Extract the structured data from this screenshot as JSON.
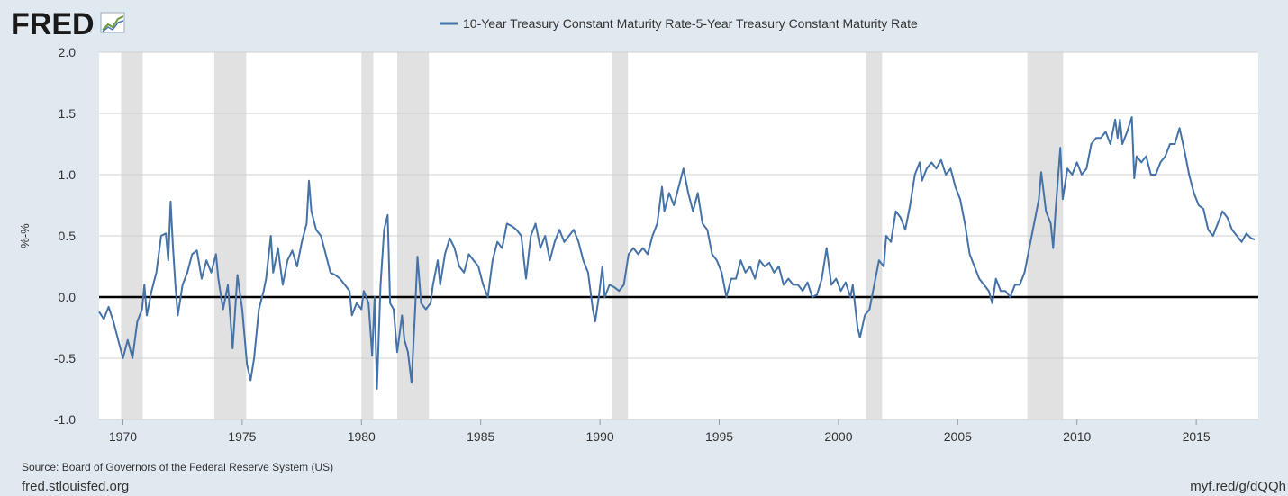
{
  "logo": "FRED",
  "source": "Source: Board of Governors of the Federal Reserve System (US)",
  "site": "fred.stlouisfed.org",
  "short_link": "myf.red/g/dQQh",
  "chart_data": {
    "type": "line",
    "y_label": "%-%",
    "xlim": [
      1969.0,
      2017.6
    ],
    "xticks": [
      1970,
      1975,
      1980,
      1985,
      1990,
      1995,
      2000,
      2005,
      2010,
      2015
    ],
    "ylim": [
      -1.0,
      2.0
    ],
    "yticks": [
      {
        "value": -1.0,
        "label": "-1.0"
      },
      -0.5,
      {
        "value": 0.0,
        "label": "0.0"
      },
      0.5,
      {
        "value": 1.0,
        "label": "1.0"
      },
      1.5,
      {
        "value": 2.0,
        "label": "2.0"
      }
    ],
    "grid": true,
    "baseline": 0,
    "recessions": [
      [
        1969.92,
        1970.83
      ],
      [
        1973.83,
        1975.17
      ],
      [
        1980.0,
        1980.5
      ],
      [
        1981.5,
        1982.83
      ],
      [
        1990.5,
        1991.17
      ],
      [
        2001.17,
        2001.83
      ],
      [
        2007.92,
        2009.42
      ]
    ],
    "series": [
      {
        "name": "10-Year Treasury Constant Maturity Rate-5-Year Treasury Constant Maturity Rate",
        "color": "#4572a7",
        "x": [
          1969.0,
          1969.2,
          1969.4,
          1969.6,
          1969.8,
          1970.0,
          1970.2,
          1970.4,
          1970.6,
          1970.8,
          1970.9,
          1971.0,
          1971.2,
          1971.4,
          1971.6,
          1971.8,
          1971.9,
          1972.0,
          1972.1,
          1972.2,
          1972.3,
          1972.5,
          1972.7,
          1972.9,
          1973.1,
          1973.3,
          1973.5,
          1973.7,
          1973.9,
          1974.0,
          1974.2,
          1974.4,
          1974.6,
          1974.8,
          1975.0,
          1975.2,
          1975.35,
          1975.5,
          1975.7,
          1975.9,
          1976.0,
          1976.2,
          1976.3,
          1976.5,
          1976.7,
          1976.9,
          1977.1,
          1977.3,
          1977.5,
          1977.7,
          1977.8,
          1977.9,
          1978.1,
          1978.3,
          1978.5,
          1978.7,
          1978.9,
          1979.1,
          1979.3,
          1979.5,
          1979.6,
          1979.8,
          1980.0,
          1980.1,
          1980.3,
          1980.45,
          1980.55,
          1980.65,
          1980.8,
          1980.95,
          1981.1,
          1981.2,
          1981.35,
          1981.5,
          1981.7,
          1981.8,
          1981.95,
          1982.1,
          1982.25,
          1982.35,
          1982.5,
          1982.7,
          1982.9,
          1983.0,
          1983.2,
          1983.3,
          1983.5,
          1983.7,
          1983.9,
          1984.1,
          1984.3,
          1984.5,
          1984.7,
          1984.9,
          1985.1,
          1985.3,
          1985.5,
          1985.7,
          1985.9,
          1986.1,
          1986.3,
          1986.5,
          1986.7,
          1986.9,
          1987.1,
          1987.3,
          1987.5,
          1987.7,
          1987.9,
          1988.1,
          1988.3,
          1988.5,
          1988.7,
          1988.9,
          1989.1,
          1989.3,
          1989.5,
          1989.7,
          1989.8,
          1989.95,
          1990.1,
          1990.2,
          1990.4,
          1990.6,
          1990.8,
          1991.0,
          1991.2,
          1991.4,
          1991.6,
          1991.8,
          1992.0,
          1992.2,
          1992.4,
          1992.6,
          1992.7,
          1992.9,
          1993.1,
          1993.3,
          1993.5,
          1993.7,
          1993.9,
          1994.1,
          1994.3,
          1994.5,
          1994.7,
          1994.9,
          1995.1,
          1995.3,
          1995.5,
          1995.7,
          1995.9,
          1996.1,
          1996.3,
          1996.5,
          1996.7,
          1996.9,
          1997.1,
          1997.3,
          1997.5,
          1997.7,
          1997.9,
          1998.1,
          1998.3,
          1998.5,
          1998.7,
          1998.9,
          1999.1,
          1999.3,
          1999.5,
          1999.7,
          1999.9,
          2000.1,
          2000.3,
          2000.5,
          2000.6,
          2000.8,
          2000.9,
          2001.1,
          2001.3,
          2001.5,
          2001.7,
          2001.9,
          2002.0,
          2002.2,
          2002.4,
          2002.6,
          2002.8,
          2003.0,
          2003.2,
          2003.4,
          2003.5,
          2003.7,
          2003.9,
          2004.1,
          2004.3,
          2004.5,
          2004.7,
          2004.9,
          2005.1,
          2005.3,
          2005.5,
          2005.7,
          2005.9,
          2006.1,
          2006.3,
          2006.45,
          2006.6,
          2006.8,
          2007.0,
          2007.2,
          2007.4,
          2007.6,
          2007.8,
          2008.0,
          2008.2,
          2008.4,
          2008.5,
          2008.7,
          2008.9,
          2009.0,
          2009.1,
          2009.3,
          2009.4,
          2009.6,
          2009.8,
          2010.0,
          2010.2,
          2010.4,
          2010.6,
          2010.8,
          2011.0,
          2011.2,
          2011.4,
          2011.6,
          2011.7,
          2011.8,
          2011.9,
          2012.1,
          2012.3,
          2012.4,
          2012.5,
          2012.7,
          2012.9,
          2013.1,
          2013.3,
          2013.5,
          2013.7,
          2013.9,
          2014.1,
          2014.3,
          2014.5,
          2014.7,
          2014.9,
          2015.1,
          2015.3,
          2015.5,
          2015.7,
          2015.9,
          2016.1,
          2016.3,
          2016.5,
          2016.7,
          2016.9,
          2017.1,
          2017.3,
          2017.45
        ],
        "values": [
          -0.12,
          -0.18,
          -0.08,
          -0.2,
          -0.35,
          -0.5,
          -0.35,
          -0.5,
          -0.2,
          -0.1,
          0.1,
          -0.15,
          0.05,
          0.2,
          0.5,
          0.52,
          0.3,
          0.78,
          0.4,
          0.1,
          -0.15,
          0.1,
          0.2,
          0.35,
          0.38,
          0.15,
          0.3,
          0.2,
          0.35,
          0.15,
          -0.1,
          0.1,
          -0.42,
          0.18,
          -0.1,
          -0.55,
          -0.68,
          -0.5,
          -0.1,
          0.05,
          0.15,
          0.5,
          0.2,
          0.4,
          0.1,
          0.3,
          0.38,
          0.25,
          0.45,
          0.6,
          0.95,
          0.7,
          0.55,
          0.5,
          0.35,
          0.2,
          0.18,
          0.15,
          0.1,
          0.05,
          -0.15,
          -0.05,
          -0.1,
          0.05,
          -0.05,
          -0.48,
          0.0,
          -0.75,
          0.1,
          0.55,
          0.67,
          -0.05,
          -0.1,
          -0.45,
          -0.15,
          -0.35,
          -0.45,
          -0.7,
          -0.1,
          0.33,
          -0.05,
          -0.1,
          -0.05,
          0.1,
          0.3,
          0.1,
          0.35,
          0.48,
          0.4,
          0.25,
          0.2,
          0.35,
          0.3,
          0.25,
          0.1,
          0.0,
          0.3,
          0.45,
          0.4,
          0.6,
          0.58,
          0.55,
          0.5,
          0.15,
          0.5,
          0.6,
          0.4,
          0.5,
          0.3,
          0.45,
          0.55,
          0.45,
          0.5,
          0.55,
          0.45,
          0.3,
          0.2,
          -0.1,
          -0.2,
          0.0,
          0.25,
          0.0,
          0.1,
          0.08,
          0.05,
          0.1,
          0.35,
          0.4,
          0.35,
          0.4,
          0.35,
          0.5,
          0.6,
          0.9,
          0.7,
          0.85,
          0.75,
          0.9,
          1.05,
          0.85,
          0.7,
          0.85,
          0.6,
          0.55,
          0.35,
          0.3,
          0.2,
          0.0,
          0.15,
          0.15,
          0.3,
          0.2,
          0.25,
          0.15,
          0.3,
          0.25,
          0.28,
          0.2,
          0.25,
          0.1,
          0.15,
          0.1,
          0.1,
          0.05,
          0.12,
          0.0,
          0.02,
          0.15,
          0.4,
          0.1,
          0.15,
          0.05,
          0.12,
          0.0,
          0.1,
          -0.25,
          -0.33,
          -0.15,
          -0.1,
          0.1,
          0.3,
          0.25,
          0.5,
          0.45,
          0.7,
          0.65,
          0.55,
          0.75,
          1.0,
          1.1,
          0.95,
          1.05,
          1.1,
          1.05,
          1.12,
          1.0,
          1.05,
          0.9,
          0.8,
          0.6,
          0.35,
          0.25,
          0.15,
          0.1,
          0.05,
          -0.05,
          0.15,
          0.05,
          0.05,
          0.0,
          0.1,
          0.1,
          0.2,
          0.4,
          0.6,
          0.8,
          1.02,
          0.7,
          0.6,
          0.4,
          0.7,
          1.22,
          0.8,
          1.05,
          1.0,
          1.1,
          1.0,
          1.05,
          1.25,
          1.3,
          1.3,
          1.35,
          1.25,
          1.45,
          1.3,
          1.45,
          1.25,
          1.35,
          1.47,
          0.97,
          1.15,
          1.1,
          1.15,
          1.0,
          1.0,
          1.1,
          1.15,
          1.25,
          1.25,
          1.38,
          1.2,
          1.0,
          0.85,
          0.75,
          0.72,
          0.55,
          0.5,
          0.6,
          0.7,
          0.65,
          0.55,
          0.5,
          0.45,
          0.52,
          0.48,
          0.47
        ]
      }
    ]
  }
}
